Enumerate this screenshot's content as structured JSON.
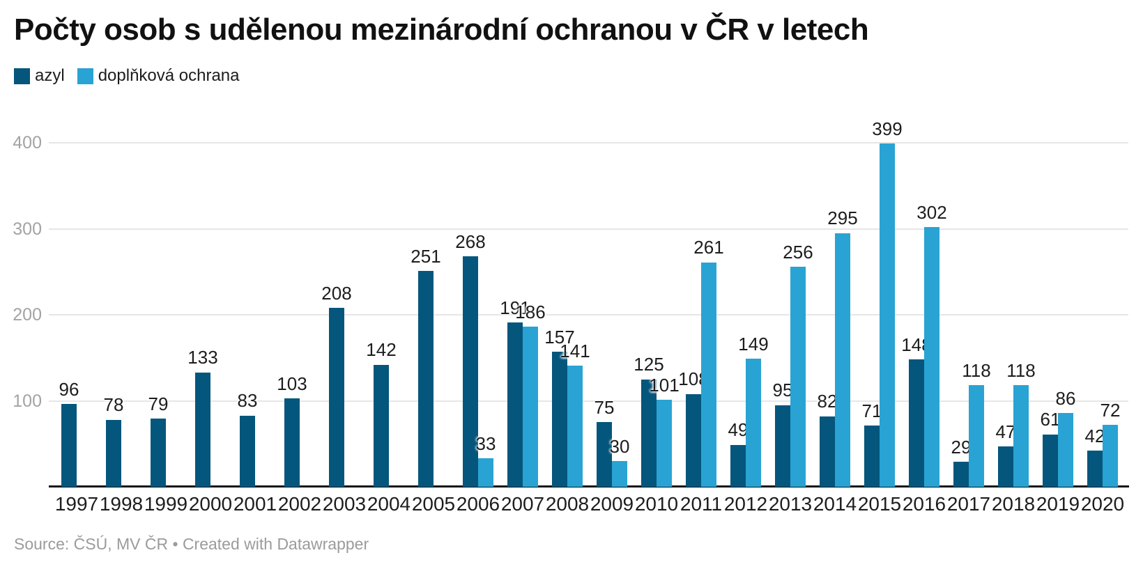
{
  "title": "Počty osob s udělenou mezinárodní ochranou v ČR v letech",
  "legend": [
    {
      "label": "azyl",
      "color": "#05567c"
    },
    {
      "label": "doplňková ochrana",
      "color": "#29a3d3"
    }
  ],
  "chart_data": {
    "type": "bar",
    "title": "Počty osob s udělenou mezinárodní ochranou v ČR v letech",
    "categories": [
      "1997",
      "1998",
      "1999",
      "2000",
      "2001",
      "2002",
      "2003",
      "2004",
      "2005",
      "2006",
      "2007",
      "2008",
      "2009",
      "2010",
      "2011",
      "2012",
      "2013",
      "2014",
      "2015",
      "2016",
      "2017",
      "2018",
      "2019",
      "2020"
    ],
    "series": [
      {
        "name": "azyl",
        "color": "#05567c",
        "values": [
          96,
          78,
          79,
          133,
          83,
          103,
          208,
          142,
          251,
          268,
          191,
          157,
          75,
          125,
          108,
          49,
          95,
          82,
          71,
          148,
          29,
          47,
          61,
          42
        ]
      },
      {
        "name": "doplňková ochrana",
        "color": "#29a3d3",
        "values": [
          null,
          null,
          null,
          null,
          null,
          null,
          null,
          null,
          null,
          33,
          186,
          141,
          30,
          101,
          261,
          149,
          256,
          295,
          399,
          302,
          118,
          118,
          86,
          72
        ]
      }
    ],
    "xlabel": "",
    "ylabel": "",
    "ylim": [
      0,
      400
    ],
    "yticks": [
      100,
      200,
      300,
      400
    ],
    "grid": true,
    "data_labels": true,
    "legend_position": "top-left"
  },
  "footer": {
    "source_text": "Source: ČSÚ, MV ČR • Created with Datawrapper"
  },
  "colors": {
    "azyl": "#05567c",
    "doplnkova": "#29a3d3",
    "gridline": "#e6e6e6",
    "axis_line": "#141414",
    "tick_text": "#a3a3a3",
    "label_text": "#1d1d1d",
    "footer_text": "#9b9b9b"
  }
}
